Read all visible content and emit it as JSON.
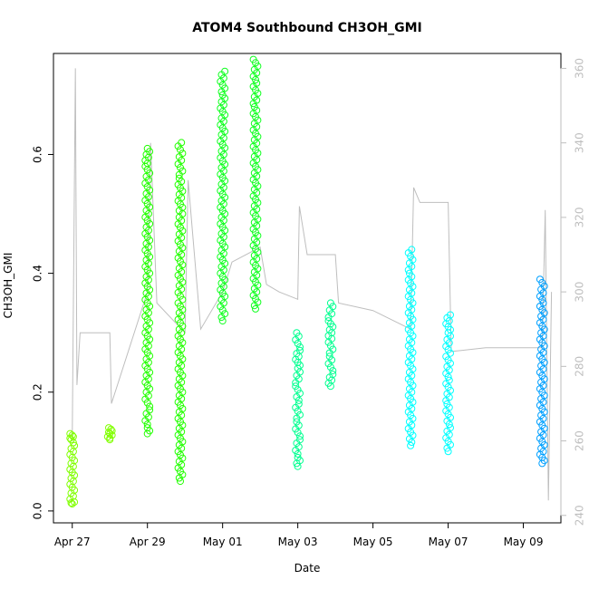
{
  "chart_data": {
    "type": "scatter",
    "title": "ATOM4 Southbound CH3OH_GMI",
    "xlabel": "Date",
    "ylabel": "CH3OH_GMI",
    "x_ticks": [
      "Apr 27",
      "Apr 29",
      "May 01",
      "May 03",
      "May 05",
      "May 07",
      "May 09"
    ],
    "y_ticks": [
      "0.0",
      "0.2",
      "0.4",
      "0.6"
    ],
    "y2_ticks": [
      "240",
      "260",
      "280",
      "300",
      "320",
      "340",
      "360"
    ],
    "xlim": [
      "2018-04-26T12:00",
      "2018-05-10T00:00"
    ],
    "ylim": [
      -0.02,
      0.77
    ],
    "y2lim": [
      238,
      364
    ],
    "year": 2018,
    "colors": {
      "secondary_axis": "#bebebe",
      "line": "#bebebe"
    },
    "series": [
      {
        "date": "2018-04-27T00:00",
        "color": "#80ff00",
        "values": [
          0.13,
          0.125,
          0.12,
          0.11,
          0.09,
          0.07,
          0.05,
          0.03,
          0.015,
          0.012
        ]
      },
      {
        "date": "2018-04-28T00:00",
        "color": "#80ff00",
        "values": [
          0.14,
          0.135,
          0.13,
          0.125,
          0.12
        ]
      },
      {
        "date": "2018-04-29T00:00",
        "color": "#22ff00",
        "values": [
          0.61,
          0.58,
          0.5,
          0.45,
          0.4,
          0.35,
          0.3,
          0.25,
          0.2,
          0.17,
          0.14,
          0.13
        ]
      },
      {
        "date": "2018-04-29T21:00",
        "color": "#22ff00",
        "values": [
          0.62,
          0.56,
          0.5,
          0.42,
          0.35,
          0.3,
          0.25,
          0.2,
          0.15,
          0.1,
          0.05
        ]
      },
      {
        "date": "2018-05-01T00:00",
        "color": "#10ff20",
        "values": [
          0.74,
          0.7,
          0.65,
          0.6,
          0.55,
          0.5,
          0.45,
          0.4,
          0.35,
          0.32
        ]
      },
      {
        "date": "2018-05-01T21:00",
        "color": "#10ff20",
        "values": [
          0.76,
          0.72,
          0.68,
          0.63,
          0.58,
          0.53,
          0.48,
          0.43,
          0.38,
          0.34
        ]
      },
      {
        "date": "2018-05-03T00:00",
        "color": "#00ff90",
        "values": [
          0.3,
          0.27,
          0.24,
          0.21,
          0.18,
          0.15,
          0.12,
          0.09,
          0.075
        ]
      },
      {
        "date": "2018-05-03T21:00",
        "color": "#00ff90",
        "values": [
          0.35,
          0.32,
          0.29,
          0.26,
          0.23,
          0.21
        ]
      },
      {
        "date": "2018-05-06T00:00",
        "color": "#00ffff",
        "values": [
          0.44,
          0.4,
          0.35,
          0.3,
          0.25,
          0.2,
          0.15,
          0.11
        ]
      },
      {
        "date": "2018-05-07T00:00",
        "color": "#00ffff",
        "values": [
          0.33,
          0.3,
          0.26,
          0.22,
          0.18,
          0.14,
          0.1
        ]
      },
      {
        "date": "2018-05-09T12:00",
        "color": "#00a0ff",
        "values": [
          0.39,
          0.35,
          0.3,
          0.25,
          0.2,
          0.15,
          0.1,
          0.08
        ]
      }
    ],
    "secondary_line": {
      "name": "",
      "points": [
        [
          "2018-04-27T00:00",
          260
        ],
        [
          "2018-04-27T02:00",
          360
        ],
        [
          "2018-04-27T03:00",
          275
        ],
        [
          "2018-04-27T05:00",
          289
        ],
        [
          "2018-04-28T00:00",
          289
        ],
        [
          "2018-04-28T01:00",
          270
        ],
        [
          "2018-04-29T00:00",
          300
        ],
        [
          "2018-04-29T02:00",
          340
        ],
        [
          "2018-04-29T06:00",
          297
        ],
        [
          "2018-04-30T00:00",
          289
        ],
        [
          "2018-04-30T02:00",
          330
        ],
        [
          "2018-04-30T10:00",
          290
        ],
        [
          "2018-05-01T00:00",
          300
        ],
        [
          "2018-05-01T06:00",
          308
        ],
        [
          "2018-05-02T00:00",
          312
        ],
        [
          "2018-05-02T04:00",
          302
        ],
        [
          "2018-05-02T12:00",
          300
        ],
        [
          "2018-05-03T00:00",
          298
        ],
        [
          "2018-05-03T01:00",
          323
        ],
        [
          "2018-05-03T06:00",
          310
        ],
        [
          "2018-05-04T00:00",
          310
        ],
        [
          "2018-05-04T02:00",
          297
        ],
        [
          "2018-05-05T00:00",
          295
        ],
        [
          "2018-05-06T00:00",
          290
        ],
        [
          "2018-05-06T02:00",
          328
        ],
        [
          "2018-05-06T06:00",
          324
        ],
        [
          "2018-05-07T00:00",
          324
        ],
        [
          "2018-05-07T02:00",
          284
        ],
        [
          "2018-05-08T00:00",
          285
        ],
        [
          "2018-05-09T12:00",
          285
        ],
        [
          "2018-05-09T14:00",
          322
        ],
        [
          "2018-05-09T16:00",
          244
        ],
        [
          "2018-05-09T18:00",
          300
        ]
      ]
    }
  }
}
